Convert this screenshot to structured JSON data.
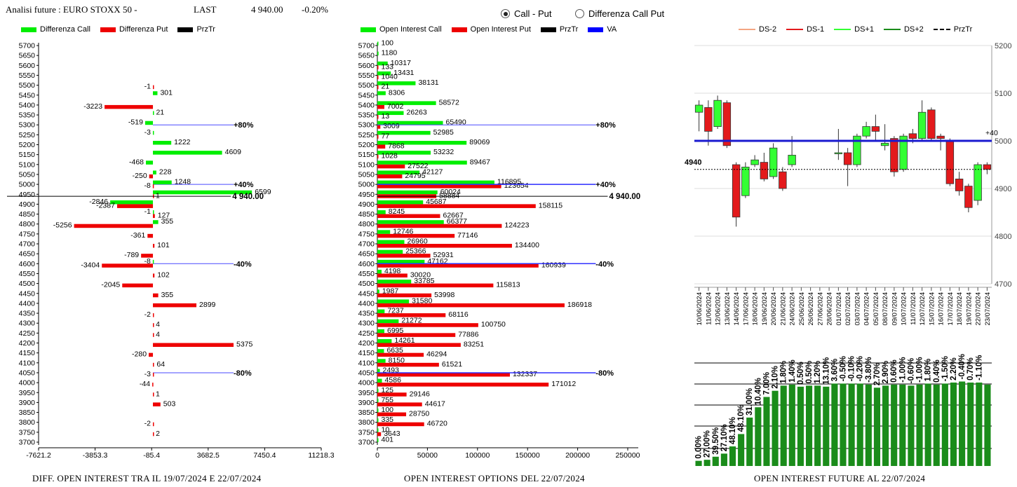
{
  "header": {
    "title": "Analisi future : EURO STOXX 50 -",
    "last_label": "LAST",
    "last_value": "4 940.00",
    "change": "-0.20%"
  },
  "controls": {
    "radio_call_put": "Call - Put",
    "radio_diff": "Differenza Call Put",
    "selected": "Call - Put"
  },
  "legends": {
    "left": [
      "Differenza Call",
      "Differenza Put",
      "PrzTr"
    ],
    "middle": [
      "Open Interest Call",
      "Open Interest Put",
      "PrzTr",
      "VA"
    ],
    "right": [
      "DS-2",
      "DS-1",
      "DS+1",
      "DS+2",
      "PrzTr"
    ]
  },
  "footers": {
    "left": "DIFF. OPEN INTEREST TRA IL 19/07/2024 E 22/07/2024",
    "middle": "OPEN INTEREST OPTIONS DEL 22/07/2024",
    "right": "OPEN INTEREST FUTURE AL 22/07/2024"
  },
  "colors": {
    "call": "#00ee00",
    "put": "#ee0000",
    "przTr": "#000000",
    "va": "#0000ff",
    "ref_line": "#4a4aff",
    "ds_minus2": "#f4a582",
    "ds_minus1": "#e31a1c",
    "ds_plus1": "#33ff33",
    "ds_plus2": "#1a8c1a",
    "future_bar": "#1a8c1a"
  },
  "chart_data": [
    {
      "type": "bar",
      "orientation": "horizontal",
      "strikes": [
        5700,
        5650,
        5600,
        5550,
        5500,
        5450,
        5400,
        5350,
        5300,
        5250,
        5200,
        5150,
        5100,
        5050,
        5000,
        4950,
        4900,
        4850,
        4800,
        4750,
        4700,
        4650,
        4600,
        4550,
        4500,
        4450,
        4400,
        4350,
        4300,
        4250,
        4200,
        4150,
        4100,
        4050,
        4000,
        3950,
        3900,
        3850,
        3800,
        3750,
        3700
      ],
      "series": [
        {
          "name": "Differenza Call",
          "values": [
            null,
            null,
            null,
            null,
            null,
            301,
            null,
            21,
            -519,
            -3,
            1222,
            4609,
            -468,
            228,
            1248,
            6599,
            -2846,
            -1,
            355,
            null,
            null,
            null,
            -8,
            null,
            null,
            null,
            null,
            null,
            null,
            null,
            null,
            null,
            null,
            null,
            null,
            null,
            null,
            null,
            null,
            null,
            null
          ]
        },
        {
          "name": "Differenza Put",
          "values": [
            null,
            null,
            null,
            null,
            -1,
            null,
            -3223,
            null,
            null,
            null,
            null,
            null,
            null,
            -250,
            -8,
            1,
            -2387,
            127,
            -5256,
            -361,
            101,
            -789,
            -3404,
            102,
            -2045,
            355,
            2899,
            -2,
            4,
            4,
            5375,
            -280,
            64,
            -3,
            -44,
            1,
            503,
            null,
            -2,
            2,
            null
          ]
        }
      ],
      "xticks": [
        -7621.2,
        -3853.3,
        -85.4,
        3682.5,
        7450.4,
        11218.3
      ],
      "xlim": [
        -7621.2,
        11218.3
      ],
      "reference_lines": [
        {
          "strike": 5300,
          "label": "+80%"
        },
        {
          "strike": 5000,
          "label": "+40%"
        },
        {
          "strike": 4600,
          "label": "-40%"
        },
        {
          "strike": 4050,
          "label": "-80%"
        }
      ],
      "prztr": {
        "value": 4940,
        "label": "4 940.00"
      }
    },
    {
      "type": "bar",
      "orientation": "horizontal",
      "strikes": [
        5700,
        5650,
        5600,
        5550,
        5500,
        5450,
        5400,
        5350,
        5300,
        5250,
        5200,
        5150,
        5100,
        5050,
        5000,
        4950,
        4900,
        4850,
        4800,
        4750,
        4700,
        4650,
        4600,
        4550,
        4500,
        4450,
        4400,
        4350,
        4300,
        4250,
        4200,
        4150,
        4100,
        4050,
        4000,
        3950,
        3900,
        3850,
        3800,
        3750,
        3700
      ],
      "series": [
        {
          "name": "Open Interest Call",
          "values": [
            100,
            1180,
            10317,
            13431,
            38131,
            8306,
            58572,
            26263,
            65490,
            52985,
            89069,
            53232,
            89467,
            42127,
            116895,
            60024,
            45687,
            8245,
            66377,
            12746,
            26960,
            25366,
            47162,
            4198,
            33785,
            1987,
            31580,
            7237,
            21272,
            6995,
            14261,
            6635,
            8150,
            2493,
            4586,
            125,
            755,
            100,
            335,
            10,
            401
          ]
        },
        {
          "name": "Open Interest Put",
          "values": [
            null,
            null,
            133,
            1040,
            21,
            null,
            7002,
            13,
            3009,
            77,
            7868,
            1028,
            27522,
            24795,
            123654,
            58884,
            158115,
            62667,
            124223,
            77146,
            134400,
            52931,
            160939,
            30020,
            115813,
            53998,
            186918,
            68116,
            100750,
            77886,
            83251,
            46294,
            61521,
            132337,
            171012,
            29146,
            44617,
            28750,
            46720,
            3643,
            null
          ]
        }
      ],
      "xticks": [
        0,
        50000,
        100000,
        150000,
        200000,
        250000
      ],
      "xlim": [
        0,
        250000
      ],
      "reference_lines": [
        {
          "strike": 5300,
          "label": "+80%"
        },
        {
          "strike": 5000,
          "label": "+40%"
        },
        {
          "strike": 4600,
          "label": "-40%"
        },
        {
          "strike": 4050,
          "label": "-80%"
        }
      ],
      "va_strikes": [
        5000,
        4600,
        4050
      ],
      "prztr": {
        "value": 4940,
        "label": "4 940.00"
      }
    },
    {
      "type": "candlestick",
      "dates": [
        "10/06/2024",
        "11/06/2024",
        "12/06/2024",
        "13/06/2024",
        "14/06/2024",
        "17/06/2024",
        "18/06/2024",
        "19/06/2024",
        "20/06/2024",
        "21/06/2024",
        "24/06/2024",
        "25/06/2024",
        "26/06/2024",
        "27/06/2024",
        "28/06/2024",
        "01/07/2024",
        "02/07/2024",
        "03/07/2024",
        "04/07/2024",
        "05/07/2024",
        "08/07/2024",
        "09/07/2024",
        "10/07/2024",
        "11/07/2024",
        "12/07/2024",
        "15/07/2024",
        "16/07/2024",
        "17/07/2024",
        "18/07/2024",
        "19/07/2024",
        "22/07/2024",
        "23/07/2024"
      ],
      "candles": [
        {
          "o": 5060,
          "c": 5075,
          "h": 5085,
          "l": 5020
        },
        {
          "o": 5070,
          "c": 5020,
          "h": 5085,
          "l": 4990
        },
        {
          "o": 5030,
          "c": 5085,
          "h": 5095,
          "l": 5025
        },
        {
          "o": 5080,
          "c": 4990,
          "h": 5085,
          "l": 4985
        },
        {
          "o": 4950,
          "c": 4840,
          "h": 4955,
          "l": 4820
        },
        {
          "o": 4885,
          "c": 4945,
          "h": 4955,
          "l": 4880
        },
        {
          "o": 4950,
          "c": 4960,
          "h": 4970,
          "l": 4945
        },
        {
          "o": 4955,
          "c": 4920,
          "h": 4975,
          "l": 4915
        },
        {
          "o": 4925,
          "c": 4985,
          "h": 4995,
          "l": 4920
        },
        {
          "o": 4935,
          "c": 4900,
          "h": 4945,
          "l": 4895
        },
        {
          "o": 4950,
          "c": 4970,
          "h": 5010,
          "l": 4945
        },
        null,
        null,
        null,
        null,
        {
          "o": 4975,
          "c": 4975,
          "h": 5025,
          "l": 4960
        },
        {
          "o": 4975,
          "c": 4950,
          "h": 4985,
          "l": 4905
        },
        {
          "o": 4950,
          "c": 5010,
          "h": 5015,
          "l": 4945
        },
        {
          "o": 5010,
          "c": 5030,
          "h": 5040,
          "l": 5005
        },
        {
          "o": 5030,
          "c": 5020,
          "h": 5055,
          "l": 5000
        },
        {
          "o": 4990,
          "c": 4995,
          "h": 5035,
          "l": 4980
        },
        {
          "o": 5005,
          "c": 4935,
          "h": 5010,
          "l": 4925
        },
        {
          "o": 4940,
          "c": 5010,
          "h": 5015,
          "l": 4935
        },
        {
          "o": 5015,
          "c": 5005,
          "h": 5025,
          "l": 4995
        },
        {
          "o": 5005,
          "c": 5060,
          "h": 5085,
          "l": 5000
        },
        {
          "o": 5065,
          "c": 5005,
          "h": 5070,
          "l": 5000
        },
        {
          "o": 5010,
          "c": 5005,
          "h": 5015,
          "l": 4980
        },
        {
          "o": 5000,
          "c": 4910,
          "h": 5005,
          "l": 4905
        },
        {
          "o": 4920,
          "c": 4895,
          "h": 4935,
          "l": 4885
        },
        {
          "o": 4905,
          "c": 4860,
          "h": 4910,
          "l": 4850
        },
        {
          "o": 4875,
          "c": 4950,
          "h": 4955,
          "l": 4865
        },
        {
          "o": 4950,
          "c": 4940,
          "h": 4955,
          "l": 4930
        }
      ],
      "ylim": [
        4700,
        5200
      ],
      "yticks": [
        4700,
        4800,
        4900,
        5000,
        5100,
        5200
      ],
      "ds_level": 5000,
      "ds_label": "+40",
      "prztr": {
        "value": 4940,
        "label": "4940"
      }
    },
    {
      "type": "bar",
      "values": [
        0.05,
        0.06,
        0.09,
        0.12,
        0.19,
        0.31,
        0.47,
        0.57,
        0.67,
        0.73,
        0.78,
        0.79,
        0.77,
        0.78,
        0.78,
        0.77,
        0.8,
        0.8,
        0.8,
        0.8,
        0.79,
        0.76,
        0.78,
        0.79,
        0.79,
        0.78,
        0.79,
        0.8,
        0.79,
        0.8,
        0.81,
        0.82,
        0.81,
        0.81,
        0.79
      ],
      "labels": [
        "0.00%",
        "27.00%",
        "39.50%",
        "27.10%",
        "48.10%",
        "48.10%",
        "31.00%",
        "10.40%",
        "7.00%",
        "2.10%",
        "1.80%",
        "1.40%",
        "0.50%",
        "0.50%",
        "1.20%",
        "13.10%",
        "3.60%",
        "-0.50%",
        "-0.10%",
        "-0.20%",
        "-3.80%",
        "2.70%",
        "2.90%",
        "0.60%",
        "-1.00%",
        "-0.60%",
        "-1.00%",
        "1.80%",
        "0.40%",
        "-1.50%",
        "2.20%",
        "-0.40%",
        "0.70%",
        "-1.10%",
        ""
      ]
    }
  ]
}
